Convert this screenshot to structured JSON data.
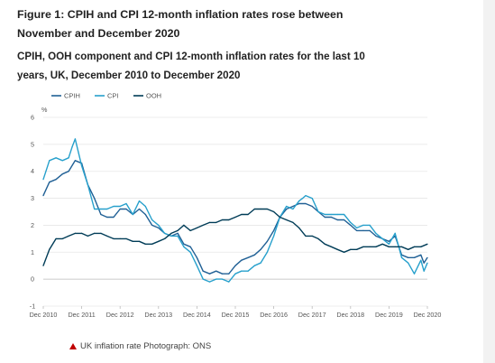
{
  "figure": {
    "title": "Figure 1: CPIH and CPI 12-month inflation rates rose between November and December 2020",
    "subtitle": "CPIH, OOH component and CPI 12-month inflation rates for the last 10 years, UK, December 2010 to December 2020"
  },
  "caption": {
    "icon": "red-triangle-icon",
    "text": "UK inflation rate Photograph: ONS"
  },
  "chart_data": {
    "type": "line",
    "title": "CPIH, OOH component and CPI 12-month inflation rates for the last 10 years, UK, December 2010 to December 2020",
    "ylabel": "%",
    "ylim": [
      -1,
      6
    ],
    "yticks": [
      "-1",
      "0",
      "1",
      "2",
      "3",
      "4",
      "5",
      "6"
    ],
    "xlim": [
      2010.92,
      2020.92
    ],
    "xticks": [
      "Dec 2010",
      "Dec 2011",
      "Dec 2012",
      "Dec 2013",
      "Dec 2014",
      "Dec 2015",
      "Dec 2016",
      "Dec 2017",
      "Dec 2018",
      "Dec 2019",
      "Dec 2020"
    ],
    "grid": "horizontal",
    "legend_position": "top-left",
    "series": [
      {
        "name": "CPIH",
        "color": "#206095",
        "points": [
          [
            2010.92,
            3.1
          ],
          [
            2011.08,
            3.6
          ],
          [
            2011.25,
            3.7
          ],
          [
            2011.42,
            3.9
          ],
          [
            2011.58,
            4.0
          ],
          [
            2011.75,
            4.4
          ],
          [
            2011.92,
            4.3
          ],
          [
            2012.08,
            3.5
          ],
          [
            2012.25,
            3.0
          ],
          [
            2012.42,
            2.4
          ],
          [
            2012.58,
            2.3
          ],
          [
            2012.75,
            2.3
          ],
          [
            2012.92,
            2.6
          ],
          [
            2013.08,
            2.6
          ],
          [
            2013.25,
            2.4
          ],
          [
            2013.42,
            2.6
          ],
          [
            2013.58,
            2.4
          ],
          [
            2013.75,
            2.0
          ],
          [
            2013.92,
            1.9
          ],
          [
            2014.08,
            1.7
          ],
          [
            2014.25,
            1.6
          ],
          [
            2014.42,
            1.7
          ],
          [
            2014.58,
            1.3
          ],
          [
            2014.75,
            1.2
          ],
          [
            2014.92,
            0.8
          ],
          [
            2015.08,
            0.3
          ],
          [
            2015.25,
            0.2
          ],
          [
            2015.42,
            0.3
          ],
          [
            2015.58,
            0.2
          ],
          [
            2015.75,
            0.2
          ],
          [
            2015.92,
            0.5
          ],
          [
            2016.08,
            0.7
          ],
          [
            2016.25,
            0.8
          ],
          [
            2016.42,
            0.9
          ],
          [
            2016.58,
            1.1
          ],
          [
            2016.75,
            1.4
          ],
          [
            2016.92,
            1.8
          ],
          [
            2017.08,
            2.3
          ],
          [
            2017.25,
            2.6
          ],
          [
            2017.42,
            2.7
          ],
          [
            2017.58,
            2.8
          ],
          [
            2017.75,
            2.8
          ],
          [
            2017.92,
            2.7
          ],
          [
            2018.08,
            2.5
          ],
          [
            2018.25,
            2.3
          ],
          [
            2018.42,
            2.3
          ],
          [
            2018.58,
            2.2
          ],
          [
            2018.75,
            2.2
          ],
          [
            2018.92,
            2.0
          ],
          [
            2019.08,
            1.8
          ],
          [
            2019.25,
            1.8
          ],
          [
            2019.42,
            1.8
          ],
          [
            2019.58,
            1.6
          ],
          [
            2019.75,
            1.5
          ],
          [
            2019.92,
            1.4
          ],
          [
            2020.08,
            1.6
          ],
          [
            2020.25,
            0.9
          ],
          [
            2020.42,
            0.8
          ],
          [
            2020.58,
            0.8
          ],
          [
            2020.75,
            0.9
          ],
          [
            2020.83,
            0.6
          ],
          [
            2020.92,
            0.8
          ]
        ]
      },
      {
        "name": "CPI",
        "color": "#27a0cc",
        "points": [
          [
            2010.92,
            3.7
          ],
          [
            2011.08,
            4.4
          ],
          [
            2011.25,
            4.5
          ],
          [
            2011.42,
            4.4
          ],
          [
            2011.58,
            4.5
          ],
          [
            2011.67,
            4.9
          ],
          [
            2011.75,
            5.2
          ],
          [
            2011.92,
            4.2
          ],
          [
            2012.08,
            3.5
          ],
          [
            2012.25,
            2.6
          ],
          [
            2012.42,
            2.6
          ],
          [
            2012.58,
            2.6
          ],
          [
            2012.75,
            2.7
          ],
          [
            2012.92,
            2.7
          ],
          [
            2013.08,
            2.8
          ],
          [
            2013.25,
            2.4
          ],
          [
            2013.42,
            2.9
          ],
          [
            2013.58,
            2.7
          ],
          [
            2013.75,
            2.2
          ],
          [
            2013.92,
            2.0
          ],
          [
            2014.08,
            1.7
          ],
          [
            2014.25,
            1.6
          ],
          [
            2014.42,
            1.6
          ],
          [
            2014.58,
            1.2
          ],
          [
            2014.75,
            1.0
          ],
          [
            2014.92,
            0.5
          ],
          [
            2015.08,
            0.0
          ],
          [
            2015.25,
            -0.1
          ],
          [
            2015.42,
            0.0
          ],
          [
            2015.58,
            0.0
          ],
          [
            2015.75,
            -0.1
          ],
          [
            2015.92,
            0.2
          ],
          [
            2016.08,
            0.3
          ],
          [
            2016.25,
            0.3
          ],
          [
            2016.42,
            0.5
          ],
          [
            2016.58,
            0.6
          ],
          [
            2016.75,
            1.0
          ],
          [
            2016.92,
            1.6
          ],
          [
            2017.08,
            2.3
          ],
          [
            2017.25,
            2.7
          ],
          [
            2017.42,
            2.6
          ],
          [
            2017.58,
            2.9
          ],
          [
            2017.67,
            3.0
          ],
          [
            2017.75,
            3.1
          ],
          [
            2017.92,
            3.0
          ],
          [
            2018.08,
            2.5
          ],
          [
            2018.25,
            2.4
          ],
          [
            2018.42,
            2.4
          ],
          [
            2018.58,
            2.4
          ],
          [
            2018.75,
            2.4
          ],
          [
            2018.92,
            2.1
          ],
          [
            2019.08,
            1.9
          ],
          [
            2019.25,
            2.0
          ],
          [
            2019.42,
            2.0
          ],
          [
            2019.58,
            1.7
          ],
          [
            2019.75,
            1.5
          ],
          [
            2019.92,
            1.3
          ],
          [
            2020.08,
            1.7
          ],
          [
            2020.25,
            0.8
          ],
          [
            2020.42,
            0.6
          ],
          [
            2020.58,
            0.2
          ],
          [
            2020.75,
            0.7
          ],
          [
            2020.83,
            0.3
          ],
          [
            2020.92,
            0.6
          ]
        ]
      },
      {
        "name": "OOH",
        "color": "#003c57",
        "points": [
          [
            2010.92,
            0.5
          ],
          [
            2011.08,
            1.1
          ],
          [
            2011.25,
            1.5
          ],
          [
            2011.42,
            1.5
          ],
          [
            2011.58,
            1.6
          ],
          [
            2011.75,
            1.7
          ],
          [
            2011.92,
            1.7
          ],
          [
            2012.08,
            1.6
          ],
          [
            2012.25,
            1.7
          ],
          [
            2012.42,
            1.7
          ],
          [
            2012.58,
            1.6
          ],
          [
            2012.75,
            1.5
          ],
          [
            2012.92,
            1.5
          ],
          [
            2013.08,
            1.5
          ],
          [
            2013.25,
            1.4
          ],
          [
            2013.42,
            1.4
          ],
          [
            2013.58,
            1.3
          ],
          [
            2013.75,
            1.3
          ],
          [
            2013.92,
            1.4
          ],
          [
            2014.08,
            1.5
          ],
          [
            2014.25,
            1.7
          ],
          [
            2014.42,
            1.8
          ],
          [
            2014.58,
            2.0
          ],
          [
            2014.75,
            1.8
          ],
          [
            2014.92,
            1.9
          ],
          [
            2015.08,
            2.0
          ],
          [
            2015.25,
            2.1
          ],
          [
            2015.42,
            2.1
          ],
          [
            2015.58,
            2.2
          ],
          [
            2015.75,
            2.2
          ],
          [
            2015.92,
            2.3
          ],
          [
            2016.08,
            2.4
          ],
          [
            2016.25,
            2.4
          ],
          [
            2016.42,
            2.6
          ],
          [
            2016.58,
            2.6
          ],
          [
            2016.75,
            2.6
          ],
          [
            2016.92,
            2.5
          ],
          [
            2017.08,
            2.3
          ],
          [
            2017.25,
            2.2
          ],
          [
            2017.42,
            2.1
          ],
          [
            2017.58,
            1.9
          ],
          [
            2017.75,
            1.6
          ],
          [
            2017.92,
            1.6
          ],
          [
            2018.08,
            1.5
          ],
          [
            2018.25,
            1.3
          ],
          [
            2018.42,
            1.2
          ],
          [
            2018.58,
            1.1
          ],
          [
            2018.75,
            1.0
          ],
          [
            2018.92,
            1.1
          ],
          [
            2019.08,
            1.1
          ],
          [
            2019.25,
            1.2
          ],
          [
            2019.42,
            1.2
          ],
          [
            2019.58,
            1.2
          ],
          [
            2019.75,
            1.3
          ],
          [
            2019.92,
            1.2
          ],
          [
            2020.08,
            1.2
          ],
          [
            2020.25,
            1.2
          ],
          [
            2020.42,
            1.1
          ],
          [
            2020.58,
            1.2
          ],
          [
            2020.75,
            1.2
          ],
          [
            2020.92,
            1.3
          ]
        ]
      }
    ]
  }
}
